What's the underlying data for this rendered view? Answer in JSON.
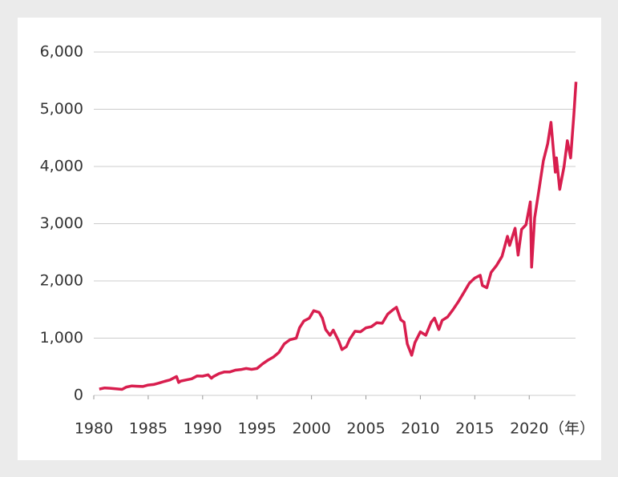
{
  "chart_data": {
    "type": "line",
    "x_unit": "（年）",
    "x": [
      1980.5,
      1981,
      1981.5,
      1982,
      1982.6,
      1983,
      1983.5,
      1984,
      1984.5,
      1985,
      1985.5,
      1986,
      1986.5,
      1987,
      1987.6,
      1987.8,
      1988,
      1988.5,
      1989,
      1989.5,
      1990,
      1990.5,
      1990.8,
      1991,
      1991.5,
      1992,
      1992.5,
      1993,
      1993.5,
      1994,
      1994.5,
      1995,
      1995.5,
      1996,
      1996.5,
      1997,
      1997.5,
      1998,
      1998.6,
      1998.9,
      1999.3,
      1999.8,
      2000.2,
      2000.7,
      2001,
      2001.3,
      2001.7,
      2002,
      2002.5,
      2002.8,
      2003.2,
      2003.5,
      2004,
      2004.5,
      2005,
      2005.5,
      2006,
      2006.5,
      2007,
      2007.5,
      2007.8,
      2008.2,
      2008.5,
      2008.8,
      2009.2,
      2009.5,
      2010,
      2010.5,
      2011,
      2011.3,
      2011.7,
      2012,
      2012.5,
      2013,
      2013.5,
      2014,
      2014.5,
      2015,
      2015.5,
      2015.7,
      2016.1,
      2016.5,
      2017,
      2017.5,
      2018,
      2018.2,
      2018.7,
      2018.98,
      2019.3,
      2019.7,
      2020.1,
      2020.22,
      2020.5,
      2020.9,
      2021.3,
      2021.7,
      2022,
      2022.4,
      2022.5,
      2022.8,
      2023.2,
      2023.5,
      2023.8,
      2024.1,
      2024.3
    ],
    "values": [
      110,
      130,
      125,
      115,
      105,
      145,
      165,
      160,
      155,
      180,
      190,
      215,
      245,
      270,
      330,
      225,
      250,
      270,
      290,
      340,
      335,
      360,
      300,
      330,
      380,
      410,
      410,
      440,
      450,
      470,
      455,
      470,
      550,
      615,
      670,
      750,
      900,
      970,
      1000,
      1180,
      1300,
      1350,
      1480,
      1450,
      1350,
      1150,
      1050,
      1140,
      950,
      800,
      850,
      980,
      1120,
      1110,
      1180,
      1200,
      1270,
      1260,
      1420,
      1500,
      1540,
      1320,
      1280,
      900,
      700,
      920,
      1110,
      1050,
      1280,
      1350,
      1150,
      1310,
      1370,
      1500,
      1640,
      1800,
      1960,
      2050,
      2100,
      1920,
      1880,
      2150,
      2270,
      2430,
      2780,
      2620,
      2920,
      2450,
      2900,
      2980,
      3380,
      2240,
      3100,
      3600,
      4100,
      4400,
      4770,
      3900,
      4150,
      3600,
      4000,
      4450,
      4150,
      4900,
      5480
    ],
    "color": "#d81e4e",
    "xlim": [
      1980,
      2024.4
    ],
    "xticks": [
      1980,
      1985,
      1990,
      1995,
      2000,
      2005,
      2010,
      2015,
      2020
    ],
    "ylim": [
      0,
      6000
    ],
    "yticks": [
      0,
      {
        "value": 1000,
        "label": "1,000"
      },
      {
        "value": 2000,
        "label": "2,000"
      },
      {
        "value": 3000,
        "label": "3,000"
      },
      {
        "value": 4000,
        "label": "4,000"
      },
      {
        "value": 5000,
        "label": "5,000"
      },
      {
        "value": 6000,
        "label": "6,000"
      }
    ],
    "grid": true
  }
}
